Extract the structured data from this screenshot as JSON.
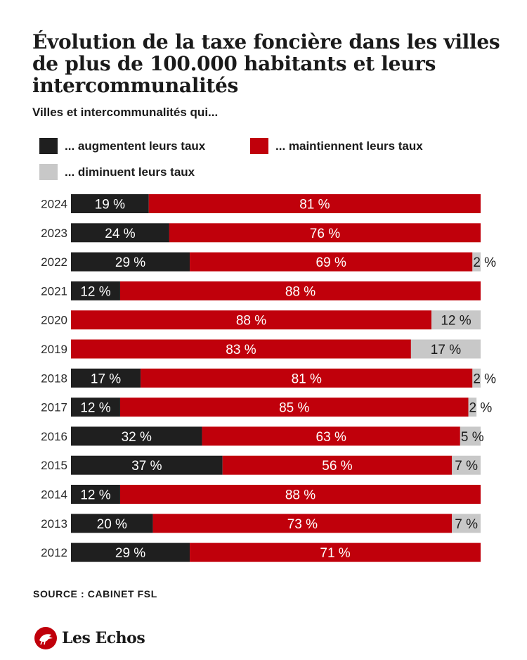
{
  "title": "Évolution de la taxe foncière dans les villes de plus de 100.000 habitants et leurs intercommunalités",
  "subtitle": "Villes et intercommunalités qui...",
  "source": "SOURCE : CABINET FSL",
  "logo_text": "Les Echos",
  "colors": {
    "augmentent": "#1f1f1f",
    "maintiennent": "#c0000b",
    "diminuent": "#c8c8c8"
  },
  "chart_data": {
    "type": "bar",
    "orientation": "horizontal",
    "stacked": true,
    "unit": "%",
    "categories": [
      "2024",
      "2023",
      "2022",
      "2021",
      "2020",
      "2019",
      "2018",
      "2017",
      "2016",
      "2015",
      "2014",
      "2013",
      "2012"
    ],
    "series": [
      {
        "name": "... augmentent leurs taux",
        "values": [
          19,
          24,
          29,
          12,
          0,
          0,
          17,
          12,
          32,
          37,
          12,
          20,
          29
        ]
      },
      {
        "name": "... maintiennent leurs taux",
        "values": [
          81,
          76,
          69,
          88,
          88,
          83,
          81,
          85,
          63,
          56,
          88,
          73,
          71
        ]
      },
      {
        "name": "... diminuent leurs taux",
        "values": [
          0,
          0,
          2,
          0,
          12,
          17,
          2,
          2,
          5,
          7,
          0,
          7,
          0
        ]
      }
    ],
    "xlim": [
      0,
      100
    ],
    "grid": false,
    "legend_position": "top"
  }
}
